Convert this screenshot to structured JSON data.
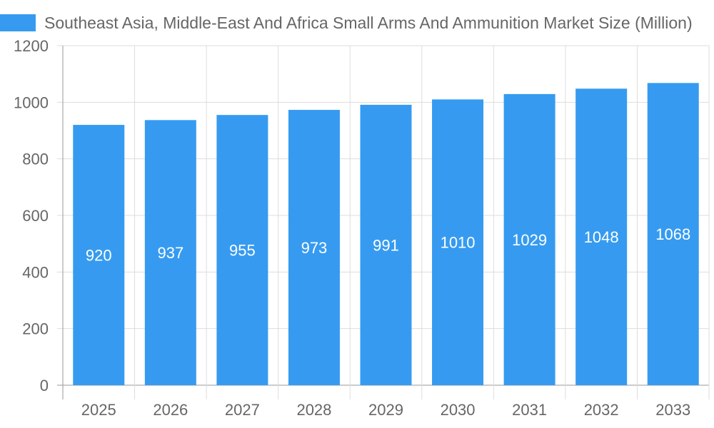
{
  "chart_data": {
    "type": "bar",
    "legend": [
      "Southeast Asia, Middle-East And Africa Small Arms And Ammunition Market Size (Million)"
    ],
    "legend_position": "top",
    "categories": [
      "2025",
      "2026",
      "2027",
      "2028",
      "2029",
      "2030",
      "2031",
      "2032",
      "2033"
    ],
    "values": [
      920,
      937,
      955,
      973,
      991,
      1010,
      1029,
      1048,
      1068
    ],
    "ylim": [
      0,
      1200
    ],
    "yticks": [
      "0",
      "200",
      "400",
      "600",
      "800",
      "1000",
      "1200"
    ],
    "grid": true,
    "bar_color": "#369bf0",
    "xlabel": "",
    "ylabel": ""
  }
}
